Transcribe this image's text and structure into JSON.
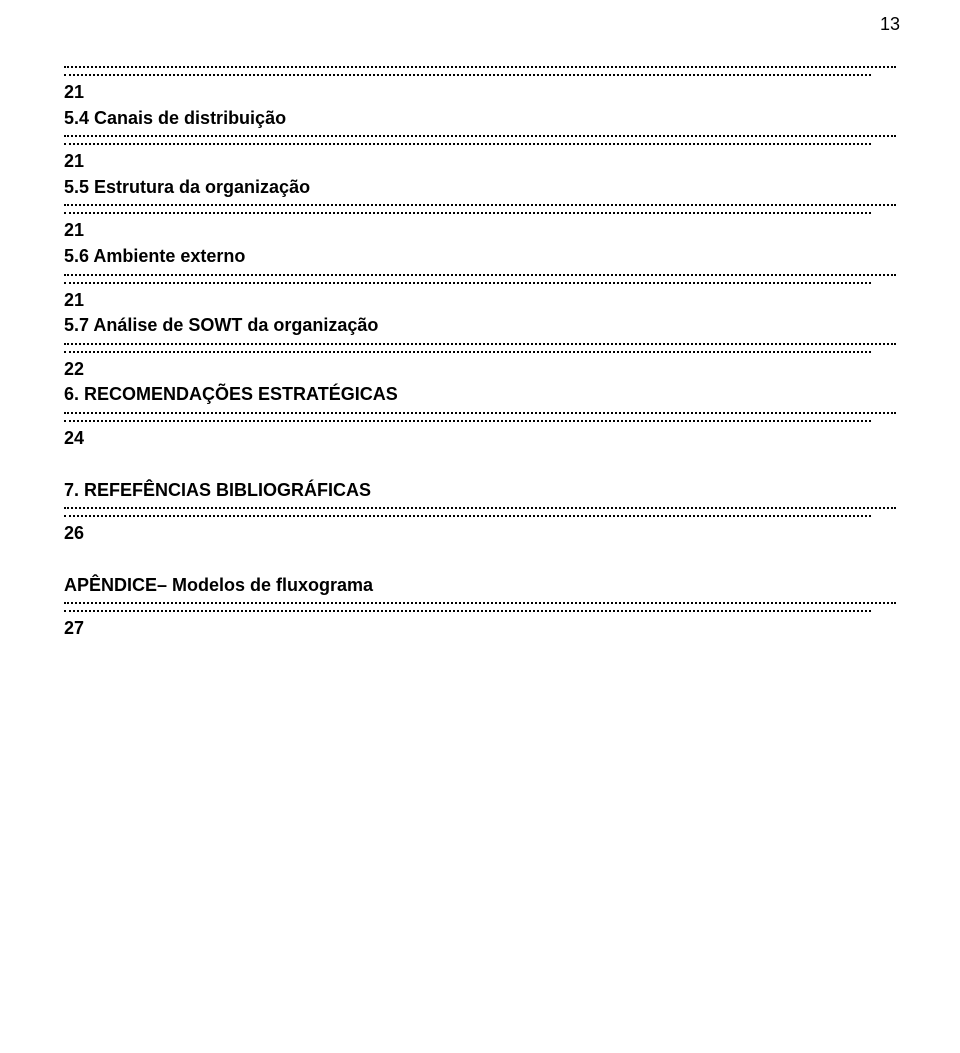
{
  "page_number_top": "13",
  "entries": [
    {
      "num": "21",
      "title": "5.4 Canais de distribuição"
    },
    {
      "num": "21",
      "title": "5.5 Estrutura da organização"
    },
    {
      "num": "21",
      "title": "5.6 Ambiente externo"
    },
    {
      "num": "21",
      "title": "5.7 Análise de SOWT da organização"
    },
    {
      "num": "22",
      "title": "6. RECOMENDAÇÕES ESTRATÉGICAS"
    },
    {
      "num": "24",
      "title": "7. REFEFÊNCIAS BIBLIOGRÁFICAS"
    },
    {
      "num": "26",
      "title": "APÊNDICE– Modelos de fluxograma"
    },
    {
      "num": "27",
      "title": ""
    }
  ],
  "colors": {
    "background": "#ffffff",
    "text": "#000000",
    "dotted": "#000000"
  },
  "typography": {
    "font_family": "Arial",
    "font_size_pt": 13,
    "weight": "bold"
  }
}
